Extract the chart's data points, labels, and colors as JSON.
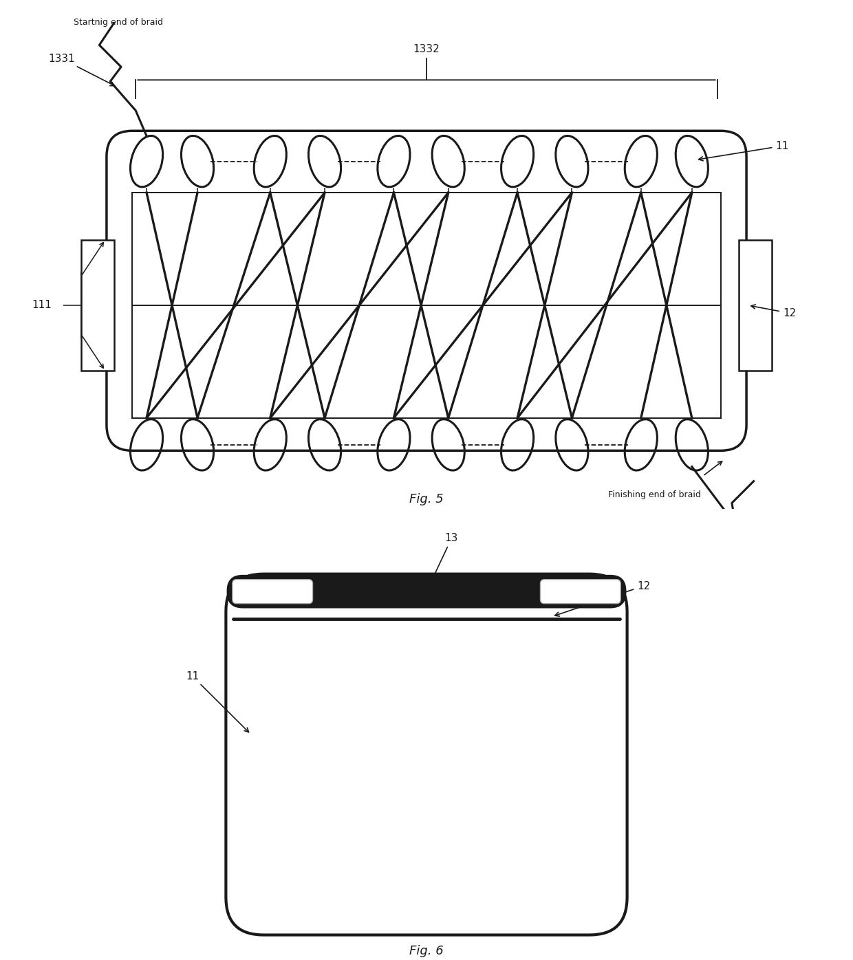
{
  "bg_color": "#ffffff",
  "line_color": "#1a1a1a",
  "fontsize_label": 11,
  "fontsize_fig": 13,
  "fig5": {
    "label_1332": "1332",
    "label_1331": "1331",
    "label_11": "11",
    "label_111": "111",
    "label_12": "12",
    "label_starting": "Startnig end of braid",
    "label_finishing": "Finishing end of braid",
    "fig_label": "Fig. 5"
  },
  "fig6": {
    "label_11": "11",
    "label_12": "12",
    "label_13": "13",
    "fig_label": "Fig. 6"
  }
}
